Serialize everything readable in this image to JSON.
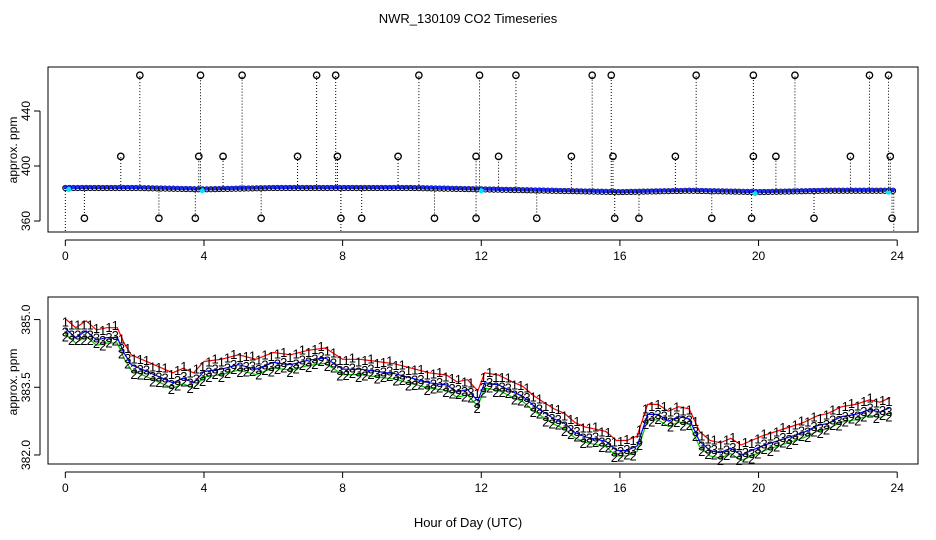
{
  "figure_title": "NWR_130109  CO2 Timeseries",
  "xlabel": "Hour of Day (UTC)",
  "chart_data": [
    {
      "type": "scatter",
      "name": "top-panel",
      "title": "NWR_130109  CO2 Timeseries",
      "ylabel": "approx. ppm",
      "xlim": [
        -0.5,
        24.6
      ],
      "ylim": [
        352,
        472
      ],
      "xticks": [
        0,
        4,
        8,
        12,
        16,
        20,
        24
      ],
      "xtick_labels": [
        "0",
        "4",
        "8",
        "12",
        "16",
        "20",
        "24"
      ],
      "yticks": [
        360,
        400,
        440
      ],
      "ytick_labels": [
        "360",
        "400",
        "440"
      ],
      "baseline": [
        [
          0,
          384
        ],
        [
          2,
          384
        ],
        [
          4,
          383
        ],
        [
          6,
          384
        ],
        [
          8,
          384
        ],
        [
          10,
          384
        ],
        [
          12,
          383
        ],
        [
          14,
          382
        ],
        [
          16,
          381
        ],
        [
          18,
          382
        ],
        [
          20,
          381
        ],
        [
          22,
          382
        ],
        [
          24,
          382
        ]
      ],
      "high_spikes": [
        2.15,
        3.9,
        5.1,
        7.25,
        7.8,
        10.2,
        11.95,
        13.0,
        15.2,
        15.75,
        18.2,
        19.85,
        21.05,
        23.2,
        23.75
      ],
      "mid_spikes": [
        1.6,
        3.85,
        4.55,
        6.7,
        7.85,
        9.6,
        11.85,
        12.5,
        14.6,
        15.8,
        17.6,
        19.85,
        20.5,
        22.65,
        23.8
      ],
      "low_spikes": [
        0.55,
        2.7,
        3.75,
        5.65,
        7.95,
        8.55,
        10.65,
        11.85,
        13.6,
        15.85,
        16.55,
        18.65,
        19.8,
        21.6,
        23.85
      ],
      "high_value": 466,
      "mid_value": 407,
      "low_value": 362
    },
    {
      "type": "line",
      "name": "bottom-panel",
      "ylabel": "approx. ppm",
      "xlim": [
        -0.5,
        24.6
      ],
      "ylim": [
        381.8,
        385.5
      ],
      "xticks": [
        0,
        4,
        8,
        12,
        16,
        20,
        24
      ],
      "xtick_labels": [
        "0",
        "4",
        "8",
        "12",
        "16",
        "20",
        "24"
      ],
      "yticks": [
        382.0,
        383.5,
        385.0
      ],
      "ytick_labels": [
        "382.0",
        "383.5",
        "385.0"
      ],
      "series": [
        {
          "name": "1",
          "color": "#ff0000",
          "offset": 0.22
        },
        {
          "name": "2",
          "color": "#00cc00",
          "offset": -0.12
        },
        {
          "name": "3",
          "color": "#0000ff",
          "offset": 0.0
        }
      ],
      "x": [
        0,
        0.3,
        0.6,
        0.9,
        1.2,
        1.5,
        1.7,
        1.9,
        2.2,
        2.5,
        2.8,
        3.1,
        3.4,
        3.7,
        4.0,
        4.5,
        5.0,
        5.5,
        6.0,
        6.5,
        7.0,
        7.5,
        8.0,
        8.5,
        9.0,
        9.5,
        10.0,
        10.5,
        11.0,
        11.3,
        11.6,
        11.9,
        12.1,
        12.5,
        12.9,
        13.2,
        13.5,
        13.8,
        14.1,
        14.4,
        14.7,
        15.0,
        15.3,
        15.6,
        15.9,
        16.2,
        16.5,
        16.8,
        17.1,
        17.4,
        17.7,
        18.0,
        18.3,
        18.6,
        18.9,
        19.2,
        19.5,
        19.8,
        20.1,
        20.5,
        20.9,
        21.3,
        21.7,
        22.0,
        22.4,
        22.8,
        23.2,
        23.5,
        23.8
      ],
      "y": [
        384.8,
        384.6,
        384.75,
        384.55,
        384.6,
        384.6,
        384.25,
        384.0,
        383.9,
        383.8,
        383.7,
        383.6,
        383.7,
        383.6,
        383.85,
        383.9,
        384.0,
        383.9,
        384.05,
        384.0,
        384.1,
        384.15,
        383.9,
        383.9,
        383.85,
        383.8,
        383.7,
        383.6,
        383.55,
        383.4,
        383.45,
        383.2,
        383.6,
        383.55,
        383.4,
        383.3,
        383.1,
        382.95,
        382.8,
        382.7,
        382.5,
        382.4,
        382.35,
        382.3,
        382.1,
        382.1,
        382.2,
        382.9,
        382.9,
        382.75,
        382.85,
        382.8,
        382.3,
        382.1,
        382.05,
        382.15,
        382.0,
        382.1,
        382.2,
        382.3,
        382.4,
        382.5,
        382.65,
        382.7,
        382.85,
        382.9,
        383.0,
        382.95,
        383.05
      ]
    }
  ]
}
